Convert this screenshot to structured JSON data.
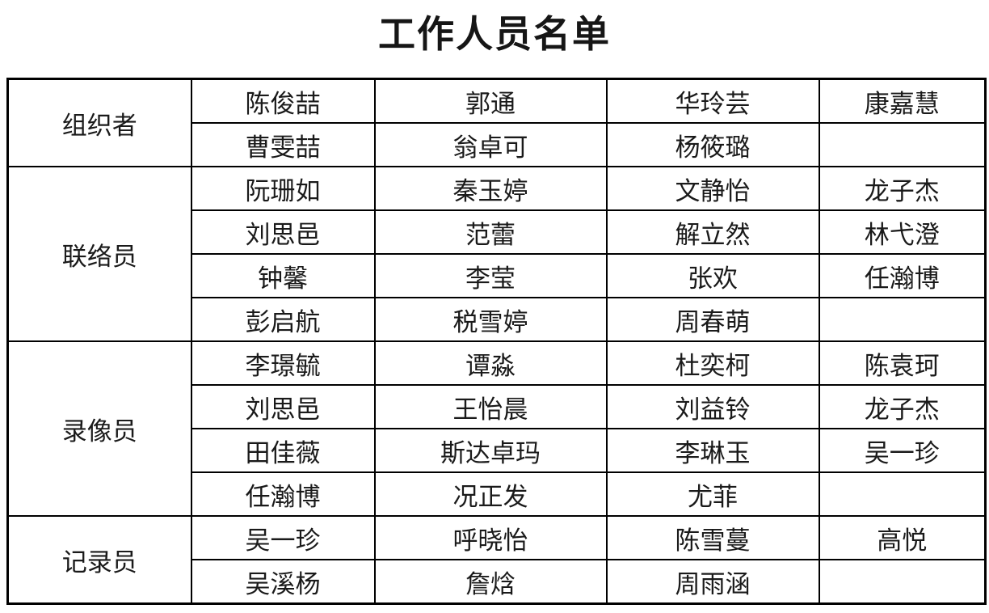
{
  "page": {
    "title": "工作人员名单"
  },
  "table": {
    "groups": [
      {
        "role": "组织者",
        "rows": [
          [
            "陈俊喆",
            "郭通",
            "华玲芸",
            "康嘉慧"
          ],
          [
            "曹雯喆",
            "翁卓可",
            "杨筱璐",
            ""
          ]
        ]
      },
      {
        "role": "联络员",
        "rows": [
          [
            "阮珊如",
            "秦玉婷",
            "文静怡",
            "龙子杰"
          ],
          [
            "刘思邑",
            "范蕾",
            "解立然",
            "林弋澄"
          ],
          [
            "钟馨",
            "李莹",
            "张欢",
            "任瀚博"
          ],
          [
            "彭启航",
            "税雪婷",
            "周春萌",
            ""
          ]
        ]
      },
      {
        "role": "录像员",
        "rows": [
          [
            "李璟毓",
            "谭淼",
            "杜奕柯",
            "陈袁珂"
          ],
          [
            "刘思邑",
            "王怡晨",
            "刘益铃",
            "龙子杰"
          ],
          [
            "田佳薇",
            "斯达卓玛",
            "李琳玉",
            "吴一珍"
          ],
          [
            "任瀚博",
            "况正发",
            "尤菲",
            ""
          ]
        ]
      },
      {
        "role": "记录员",
        "rows": [
          [
            "吴一珍",
            "呼晓怡",
            "陈雪蔓",
            "高悦"
          ],
          [
            "吴溪杨",
            "詹焓",
            "周雨涵",
            ""
          ]
        ]
      }
    ]
  }
}
